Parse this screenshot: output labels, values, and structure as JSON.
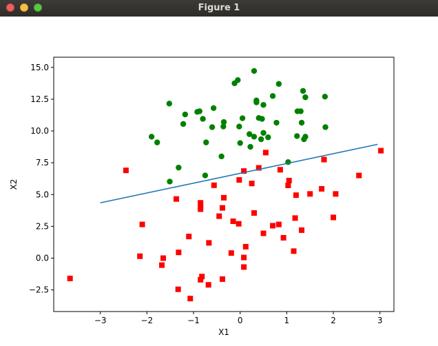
{
  "window": {
    "title": "Figure 1"
  },
  "chart_data": {
    "type": "scatter",
    "title": "",
    "xlabel": "X1",
    "ylabel": "X2",
    "xlim": [
      -4.0,
      3.3
    ],
    "ylim": [
      -4.2,
      15.8
    ],
    "xticks": [
      -3,
      -2,
      -1,
      0,
      1,
      2,
      3
    ],
    "xtick_labels": [
      "−3",
      "−2",
      "−1",
      "0",
      "1",
      "2",
      "3"
    ],
    "yticks": [
      -2.5,
      0.0,
      2.5,
      5.0,
      7.5,
      10.0,
      12.5,
      15.0
    ],
    "ytick_labels": [
      "−2.5",
      "0.0",
      "2.5",
      "5.0",
      "7.5",
      "10.0",
      "12.5",
      "15.0"
    ],
    "grid": false,
    "series": [
      {
        "color": "#008000",
        "marker": "circle",
        "points": [
          [
            0.3,
            14.72
          ],
          [
            -0.05,
            14.0
          ],
          [
            -0.12,
            13.75
          ],
          [
            0.83,
            13.7
          ],
          [
            1.35,
            13.15
          ],
          [
            1.4,
            12.65
          ],
          [
            1.82,
            12.7
          ],
          [
            0.7,
            12.75
          ],
          [
            0.35,
            12.4
          ],
          [
            0.35,
            12.25
          ],
          [
            -1.52,
            12.15
          ],
          [
            0.5,
            12.05
          ],
          [
            -0.57,
            11.8
          ],
          [
            -0.92,
            11.5
          ],
          [
            -0.87,
            11.55
          ],
          [
            -1.18,
            11.3
          ],
          [
            1.23,
            11.55
          ],
          [
            1.3,
            11.55
          ],
          [
            0.4,
            11.02
          ],
          [
            0.47,
            10.95
          ],
          [
            0.05,
            11.0
          ],
          [
            -0.8,
            10.95
          ],
          [
            -1.22,
            10.55
          ],
          [
            -0.35,
            10.7
          ],
          [
            -0.6,
            10.3
          ],
          [
            -0.36,
            10.35
          ],
          [
            0.78,
            10.65
          ],
          [
            1.32,
            10.65
          ],
          [
            -0.02,
            10.35
          ],
          [
            1.83,
            10.3
          ],
          [
            0.5,
            9.85
          ],
          [
            0.2,
            9.75
          ],
          [
            0.3,
            9.55
          ],
          [
            0.6,
            9.5
          ],
          [
            0.45,
            9.35
          ],
          [
            1.22,
            9.6
          ],
          [
            1.4,
            9.55
          ],
          [
            1.37,
            9.35
          ],
          [
            -1.9,
            9.55
          ],
          [
            -1.78,
            9.1
          ],
          [
            -0.73,
            9.1
          ],
          [
            0.0,
            9.05
          ],
          [
            0.22,
            8.75
          ],
          [
            -0.4,
            8.0
          ],
          [
            1.03,
            7.55
          ],
          [
            -1.32,
            7.12
          ],
          [
            -0.75,
            6.5
          ],
          [
            -1.51,
            6.02
          ]
        ]
      },
      {
        "color": "#ff0000",
        "marker": "square",
        "points": [
          [
            3.02,
            8.45
          ],
          [
            0.55,
            8.3
          ],
          [
            1.8,
            7.75
          ],
          [
            0.4,
            7.1
          ],
          [
            -2.45,
            6.9
          ],
          [
            0.08,
            6.85
          ],
          [
            0.86,
            6.95
          ],
          [
            2.55,
            6.5
          ],
          [
            -0.02,
            6.15
          ],
          [
            1.05,
            6.1
          ],
          [
            1.03,
            5.72
          ],
          [
            0.25,
            5.87
          ],
          [
            -0.56,
            5.73
          ],
          [
            1.75,
            5.45
          ],
          [
            1.5,
            5.05
          ],
          [
            1.2,
            4.95
          ],
          [
            2.05,
            5.05
          ],
          [
            -0.35,
            4.75
          ],
          [
            -1.37,
            4.65
          ],
          [
            -0.85,
            4.35
          ],
          [
            -0.85,
            4.05
          ],
          [
            -0.85,
            3.85
          ],
          [
            -0.38,
            3.95
          ],
          [
            -0.45,
            3.3
          ],
          [
            0.3,
            3.55
          ],
          [
            1.18,
            3.15
          ],
          [
            2.0,
            3.2
          ],
          [
            -0.15,
            2.9
          ],
          [
            -0.03,
            2.7
          ],
          [
            0.7,
            2.55
          ],
          [
            0.83,
            2.65
          ],
          [
            -2.1,
            2.65
          ],
          [
            1.32,
            2.2
          ],
          [
            0.5,
            1.95
          ],
          [
            -1.1,
            1.7
          ],
          [
            0.93,
            1.6
          ],
          [
            -0.67,
            1.2
          ],
          [
            0.12,
            0.9
          ],
          [
            1.15,
            0.55
          ],
          [
            -1.32,
            0.45
          ],
          [
            -0.19,
            0.4
          ],
          [
            -2.15,
            0.15
          ],
          [
            -1.65,
            0.0
          ],
          [
            0.08,
            0.05
          ],
          [
            -1.68,
            -0.55
          ],
          [
            0.08,
            -0.7
          ],
          [
            -0.82,
            -1.45
          ],
          [
            -0.38,
            -1.65
          ],
          [
            -0.85,
            -1.7
          ],
          [
            -0.68,
            -2.1
          ],
          [
            -3.65,
            -1.6
          ],
          [
            -1.33,
            -2.45
          ],
          [
            -1.07,
            -3.18
          ]
        ]
      },
      {
        "type": "line",
        "color": "#1f77b4",
        "points": [
          [
            -3.0,
            4.35
          ],
          [
            2.95,
            8.95
          ]
        ]
      }
    ]
  }
}
